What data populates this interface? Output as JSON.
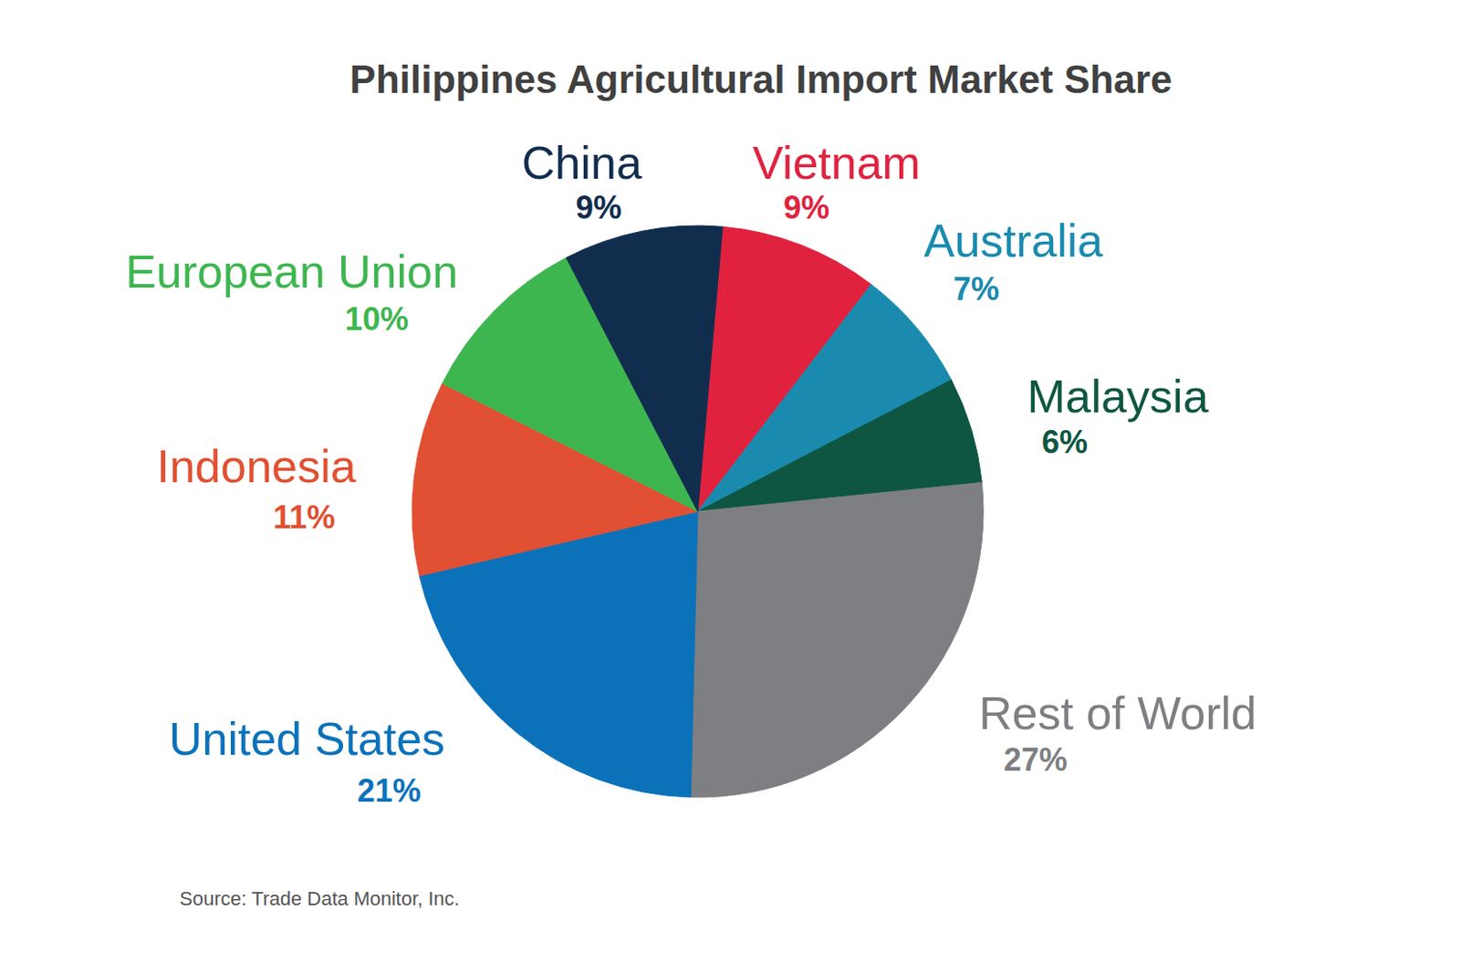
{
  "chart_data": {
    "type": "pie",
    "title": "Philippines Agricultural Import Market Share",
    "categories": [
      "Vietnam",
      "Australia",
      "Malaysia",
      "Rest of World",
      "United States",
      "Indonesia",
      "European Union",
      "China"
    ],
    "values": [
      9,
      7,
      6,
      27,
      21,
      11,
      10,
      9
    ],
    "value_labels": [
      "9%",
      "7%",
      "6%",
      "27%",
      "21%",
      "11%",
      "10%",
      "9%"
    ],
    "colors": [
      "#E0223F",
      "#1A8BAE",
      "#0E5641",
      "#7E7F82",
      "#0B72BA",
      "#E15032",
      "#3EB650",
      "#112D4E"
    ],
    "data_labels": true,
    "annotations": [
      "Source: Trade Data Monitor, Inc."
    ]
  }
}
